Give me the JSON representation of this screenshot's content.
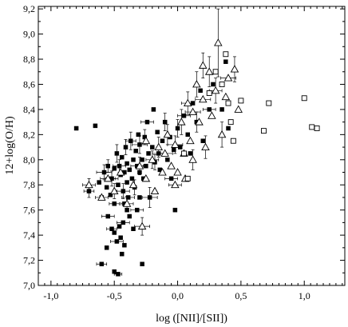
{
  "chart_data": {
    "type": "scatter",
    "xlabel": "log ([NII]/[SII])",
    "ylabel": "12+log(O/H)",
    "xlim": [
      -1.1,
      1.32
    ],
    "ylim": [
      7.0,
      9.22
    ],
    "x_ticks": [
      {
        "v": -1.0,
        "label": "-1,0"
      },
      {
        "v": -0.5,
        "label": "-0,5"
      },
      {
        "v": 0.0,
        "label": "0,0"
      },
      {
        "v": 0.5,
        "label": "0,5"
      },
      {
        "v": 1.0,
        "label": "1,0"
      }
    ],
    "y_ticks": [
      {
        "v": 7.0,
        "label": "7,0"
      },
      {
        "v": 7.2,
        "label": "7,2"
      },
      {
        "v": 7.4,
        "label": "7,4"
      },
      {
        "v": 7.6,
        "label": "7,6"
      },
      {
        "v": 7.8,
        "label": "7,8"
      },
      {
        "v": 8.0,
        "label": "8,0"
      },
      {
        "v": 8.2,
        "label": "8,2"
      },
      {
        "v": 8.4,
        "label": "8,4"
      },
      {
        "v": 8.6,
        "label": "8,6"
      },
      {
        "v": 8.8,
        "label": "8,8"
      },
      {
        "v": 9.0,
        "label": "9,0"
      },
      {
        "v": 9.2,
        "label": "9,2"
      }
    ],
    "series": [
      {
        "marker": "filled-square",
        "points": [
          {
            "x": -0.8,
            "y": 8.25
          },
          {
            "x": -0.65,
            "y": 8.27
          },
          {
            "x": -0.7,
            "y": 7.75,
            "xerr": 0.04,
            "yerr": 0.05
          },
          {
            "x": -0.62,
            "y": 7.82
          },
          {
            "x": -0.6,
            "y": 7.7,
            "xerr": 0.05
          },
          {
            "x": -0.58,
            "y": 7.9,
            "xerr": 0.06,
            "yerr": 0.06
          },
          {
            "x": -0.56,
            "y": 7.78
          },
          {
            "x": -0.55,
            "y": 7.95,
            "yerr": 0.05
          },
          {
            "x": -0.53,
            "y": 7.72
          },
          {
            "x": -0.52,
            "y": 7.85,
            "xerr": 0.05,
            "yerr": 0.06
          },
          {
            "x": -0.5,
            "y": 7.93
          },
          {
            "x": -0.5,
            "y": 7.65,
            "xerr": 0.04
          },
          {
            "x": -0.48,
            "y": 8.05,
            "yerr": 0.07
          },
          {
            "x": -0.47,
            "y": 7.8
          },
          {
            "x": -0.46,
            "y": 7.95,
            "xerr": 0.05,
            "yerr": 0.05
          },
          {
            "x": -0.45,
            "y": 7.88
          },
          {
            "x": -0.44,
            "y": 8.02
          },
          {
            "x": -0.43,
            "y": 7.75,
            "xerr": 0.05,
            "yerr": 0.06
          },
          {
            "x": -0.42,
            "y": 7.9
          },
          {
            "x": -0.41,
            "y": 8.1,
            "yerr": 0.06
          },
          {
            "x": -0.4,
            "y": 7.97
          },
          {
            "x": -0.4,
            "y": 7.82
          },
          {
            "x": -0.39,
            "y": 7.7,
            "xerr": 0.05
          },
          {
            "x": -0.38,
            "y": 7.92
          },
          {
            "x": -0.37,
            "y": 8.15,
            "xerr": 0.04,
            "yerr": 0.07
          },
          {
            "x": -0.36,
            "y": 7.85
          },
          {
            "x": -0.35,
            "y": 8.0
          },
          {
            "x": -0.34,
            "y": 7.78,
            "yerr": 0.06
          },
          {
            "x": -0.33,
            "y": 8.07
          },
          {
            "x": -0.32,
            "y": 7.95,
            "xerr": 0.05
          },
          {
            "x": -0.31,
            "y": 8.2
          },
          {
            "x": -0.3,
            "y": 7.9
          },
          {
            "x": -0.3,
            "y": 8.12,
            "xerr": 0.06,
            "yerr": 0.07
          },
          {
            "x": -0.28,
            "y": 8.0
          },
          {
            "x": -0.27,
            "y": 7.85
          },
          {
            "x": -0.26,
            "y": 8.18,
            "yerr": 0.06
          },
          {
            "x": -0.25,
            "y": 7.95
          },
          {
            "x": -0.24,
            "y": 8.3,
            "xerr": 0.05
          },
          {
            "x": -0.23,
            "y": 8.05
          },
          {
            "x": -0.22,
            "y": 7.7,
            "xerr": 0.06,
            "yerr": 0.08
          },
          {
            "x": -0.2,
            "y": 8.1
          },
          {
            "x": -0.19,
            "y": 8.4
          },
          {
            "x": -0.18,
            "y": 7.98,
            "yerr": 0.06
          },
          {
            "x": -0.16,
            "y": 8.22
          },
          {
            "x": -0.15,
            "y": 8.05,
            "xerr": 0.05
          },
          {
            "x": -0.14,
            "y": 7.92
          },
          {
            "x": -0.12,
            "y": 8.15
          },
          {
            "x": -0.1,
            "y": 8.3,
            "yerr": 0.07
          },
          {
            "x": -0.08,
            "y": 8.0
          },
          {
            "x": -0.06,
            "y": 8.18
          },
          {
            "x": -0.05,
            "y": 7.85,
            "xerr": 0.05
          },
          {
            "x": -0.03,
            "y": 8.08
          },
          {
            "x": -0.02,
            "y": 7.6
          },
          {
            "x": 0.0,
            "y": 8.25,
            "yerr": 0.07
          },
          {
            "x": 0.02,
            "y": 8.1
          },
          {
            "x": 0.05,
            "y": 8.35,
            "xerr": 0.05
          },
          {
            "x": 0.08,
            "y": 8.2
          },
          {
            "x": 0.1,
            "y": 8.05
          },
          {
            "x": 0.12,
            "y": 8.45
          },
          {
            "x": 0.15,
            "y": 8.3,
            "yerr": 0.08
          },
          {
            "x": 0.18,
            "y": 8.55
          },
          {
            "x": 0.2,
            "y": 8.15
          },
          {
            "x": 0.25,
            "y": 8.4,
            "xerr": 0.05
          },
          {
            "x": 0.28,
            "y": 8.6
          },
          {
            "x": 0.35,
            "y": 8.4
          },
          {
            "x": 0.38,
            "y": 8.78
          },
          {
            "x": 0.4,
            "y": 8.25
          },
          {
            "x": -0.55,
            "y": 7.55,
            "xerr": 0.05
          },
          {
            "x": -0.52,
            "y": 7.45,
            "xerr": 0.04
          },
          {
            "x": -0.5,
            "y": 7.42
          },
          {
            "x": -0.48,
            "y": 7.35,
            "xerr": 0.05
          },
          {
            "x": -0.46,
            "y": 7.47
          },
          {
            "x": -0.45,
            "y": 7.38
          },
          {
            "x": -0.43,
            "y": 7.5,
            "xerr": 0.05
          },
          {
            "x": -0.42,
            "y": 7.32
          },
          {
            "x": -0.4,
            "y": 7.6
          },
          {
            "x": -0.56,
            "y": 7.3
          },
          {
            "x": -0.44,
            "y": 7.25
          },
          {
            "x": -0.6,
            "y": 7.17,
            "xerr": 0.04
          },
          {
            "x": -0.5,
            "y": 7.11
          },
          {
            "x": -0.47,
            "y": 7.09,
            "xerr": 0.03
          },
          {
            "x": -0.28,
            "y": 7.17
          },
          {
            "x": -0.38,
            "y": 7.55
          },
          {
            "x": -0.32,
            "y": 7.6,
            "xerr": 0.05
          },
          {
            "x": -0.35,
            "y": 7.45
          },
          {
            "x": -0.42,
            "y": 7.65
          },
          {
            "x": -0.3,
            "y": 7.7
          }
        ]
      },
      {
        "marker": "open-triangle",
        "points": [
          {
            "x": -0.7,
            "y": 7.8,
            "xerr": 0.05,
            "yerr": 0.05
          },
          {
            "x": -0.6,
            "y": 7.7
          },
          {
            "x": -0.55,
            "y": 7.85,
            "xerr": 0.06
          },
          {
            "x": -0.5,
            "y": 7.75,
            "yerr": 0.06
          },
          {
            "x": -0.45,
            "y": 7.9
          },
          {
            "x": -0.4,
            "y": 7.65,
            "xerr": 0.05,
            "yerr": 0.06
          },
          {
            "x": -0.35,
            "y": 7.8
          },
          {
            "x": -0.3,
            "y": 7.95,
            "yerr": 0.07
          },
          {
            "x": -0.28,
            "y": 7.47,
            "xerr": 0.06,
            "yerr": 0.07
          },
          {
            "x": -0.25,
            "y": 7.85
          },
          {
            "x": -0.2,
            "y": 8.0,
            "xerr": 0.05,
            "yerr": 0.07
          },
          {
            "x": -0.18,
            "y": 7.75
          },
          {
            "x": -0.15,
            "y": 8.1,
            "yerr": 0.08
          },
          {
            "x": -0.12,
            "y": 7.9
          },
          {
            "x": -0.1,
            "y": 8.05,
            "xerr": 0.06
          },
          {
            "x": -0.08,
            "y": 8.2,
            "yerr": 0.08
          },
          {
            "x": -0.05,
            "y": 7.95
          },
          {
            "x": -0.02,
            "y": 8.12,
            "xerr": 0.06,
            "yerr": 0.07
          },
          {
            "x": 0.0,
            "y": 7.9
          },
          {
            "x": 0.03,
            "y": 8.3,
            "yerr": 0.1
          },
          {
            "x": 0.05,
            "y": 8.05
          },
          {
            "x": 0.08,
            "y": 8.45,
            "xerr": 0.05,
            "yerr": 0.09
          },
          {
            "x": 0.1,
            "y": 8.15
          },
          {
            "x": 0.12,
            "y": 8.0,
            "yerr": 0.08
          },
          {
            "x": 0.15,
            "y": 8.6,
            "yerr": 0.1
          },
          {
            "x": 0.17,
            "y": 8.3
          },
          {
            "x": 0.2,
            "y": 8.48,
            "xerr": 0.06
          },
          {
            "x": 0.22,
            "y": 8.1,
            "yerr": 0.09
          },
          {
            "x": 0.25,
            "y": 8.7,
            "yerr": 0.12
          },
          {
            "x": 0.27,
            "y": 8.35
          },
          {
            "x": 0.3,
            "y": 8.55,
            "xerr": 0.05,
            "yerr": 0.1
          },
          {
            "x": 0.32,
            "y": 8.93,
            "yerr": 0.27
          },
          {
            "x": 0.35,
            "y": 8.2,
            "yerr": 0.1
          },
          {
            "x": 0.38,
            "y": 8.5
          },
          {
            "x": 0.4,
            "y": 8.65,
            "xerr": 0.06
          },
          {
            "x": 0.45,
            "y": 8.72,
            "yerr": 0.1
          },
          {
            "x": 0.48,
            "y": 8.4
          },
          {
            "x": -0.02,
            "y": 7.8,
            "xerr": 0.05
          },
          {
            "x": 0.06,
            "y": 7.85
          },
          {
            "x": -0.25,
            "y": 8.15
          },
          {
            "x": 0.2,
            "y": 8.75,
            "yerr": 0.1
          },
          {
            "x": 0.12,
            "y": 8.38,
            "xerr": 0.06
          }
        ]
      },
      {
        "marker": "open-square",
        "points": [
          {
            "x": 0.38,
            "y": 8.84
          },
          {
            "x": 0.3,
            "y": 8.7
          },
          {
            "x": 0.4,
            "y": 8.45
          },
          {
            "x": 0.42,
            "y": 8.3
          },
          {
            "x": 0.44,
            "y": 8.15
          },
          {
            "x": 0.35,
            "y": 8.6
          },
          {
            "x": 0.5,
            "y": 8.47
          },
          {
            "x": 0.72,
            "y": 8.45
          },
          {
            "x": 0.68,
            "y": 8.23
          },
          {
            "x": 1.0,
            "y": 8.49
          },
          {
            "x": 1.06,
            "y": 8.26
          },
          {
            "x": 1.1,
            "y": 8.25
          },
          {
            "x": 0.25,
            "y": 8.53
          },
          {
            "x": 0.05,
            "y": 8.05
          },
          {
            "x": 0.08,
            "y": 7.85
          }
        ]
      }
    ]
  }
}
